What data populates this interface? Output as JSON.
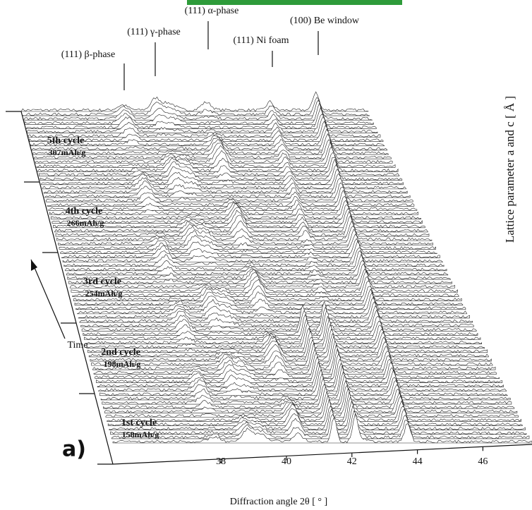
{
  "chart_data": {
    "type": "waterfall",
    "xlabel": "Diffraction angle 2θ [ ° ]",
    "xlim": [
      34.7,
      47.5
    ],
    "xticks": [
      38,
      40,
      42,
      44,
      46
    ],
    "peak_labels": [
      "(111)  β-phase",
      "(111)  γ-phase",
      "(111)  α-phase",
      "(111)  Ni foam",
      "(100)  Be window"
    ],
    "time_label": "Time",
    "cycles": [
      {
        "label": "1st cycle",
        "capacity": "158mAh/g"
      },
      {
        "label": "2nd cycle",
        "capacity": "198mAh/g"
      },
      {
        "label": "3rd cycle",
        "capacity": "254mAh/g"
      },
      {
        "label": "4th cycle",
        "capacity": "266mAh/g"
      },
      {
        "label": "5th cycle",
        "capacity": "307mAh/g"
      }
    ],
    "panel_label": "a)",
    "side_label": "Lattice parameter  a  and  c  [ Å ]"
  }
}
